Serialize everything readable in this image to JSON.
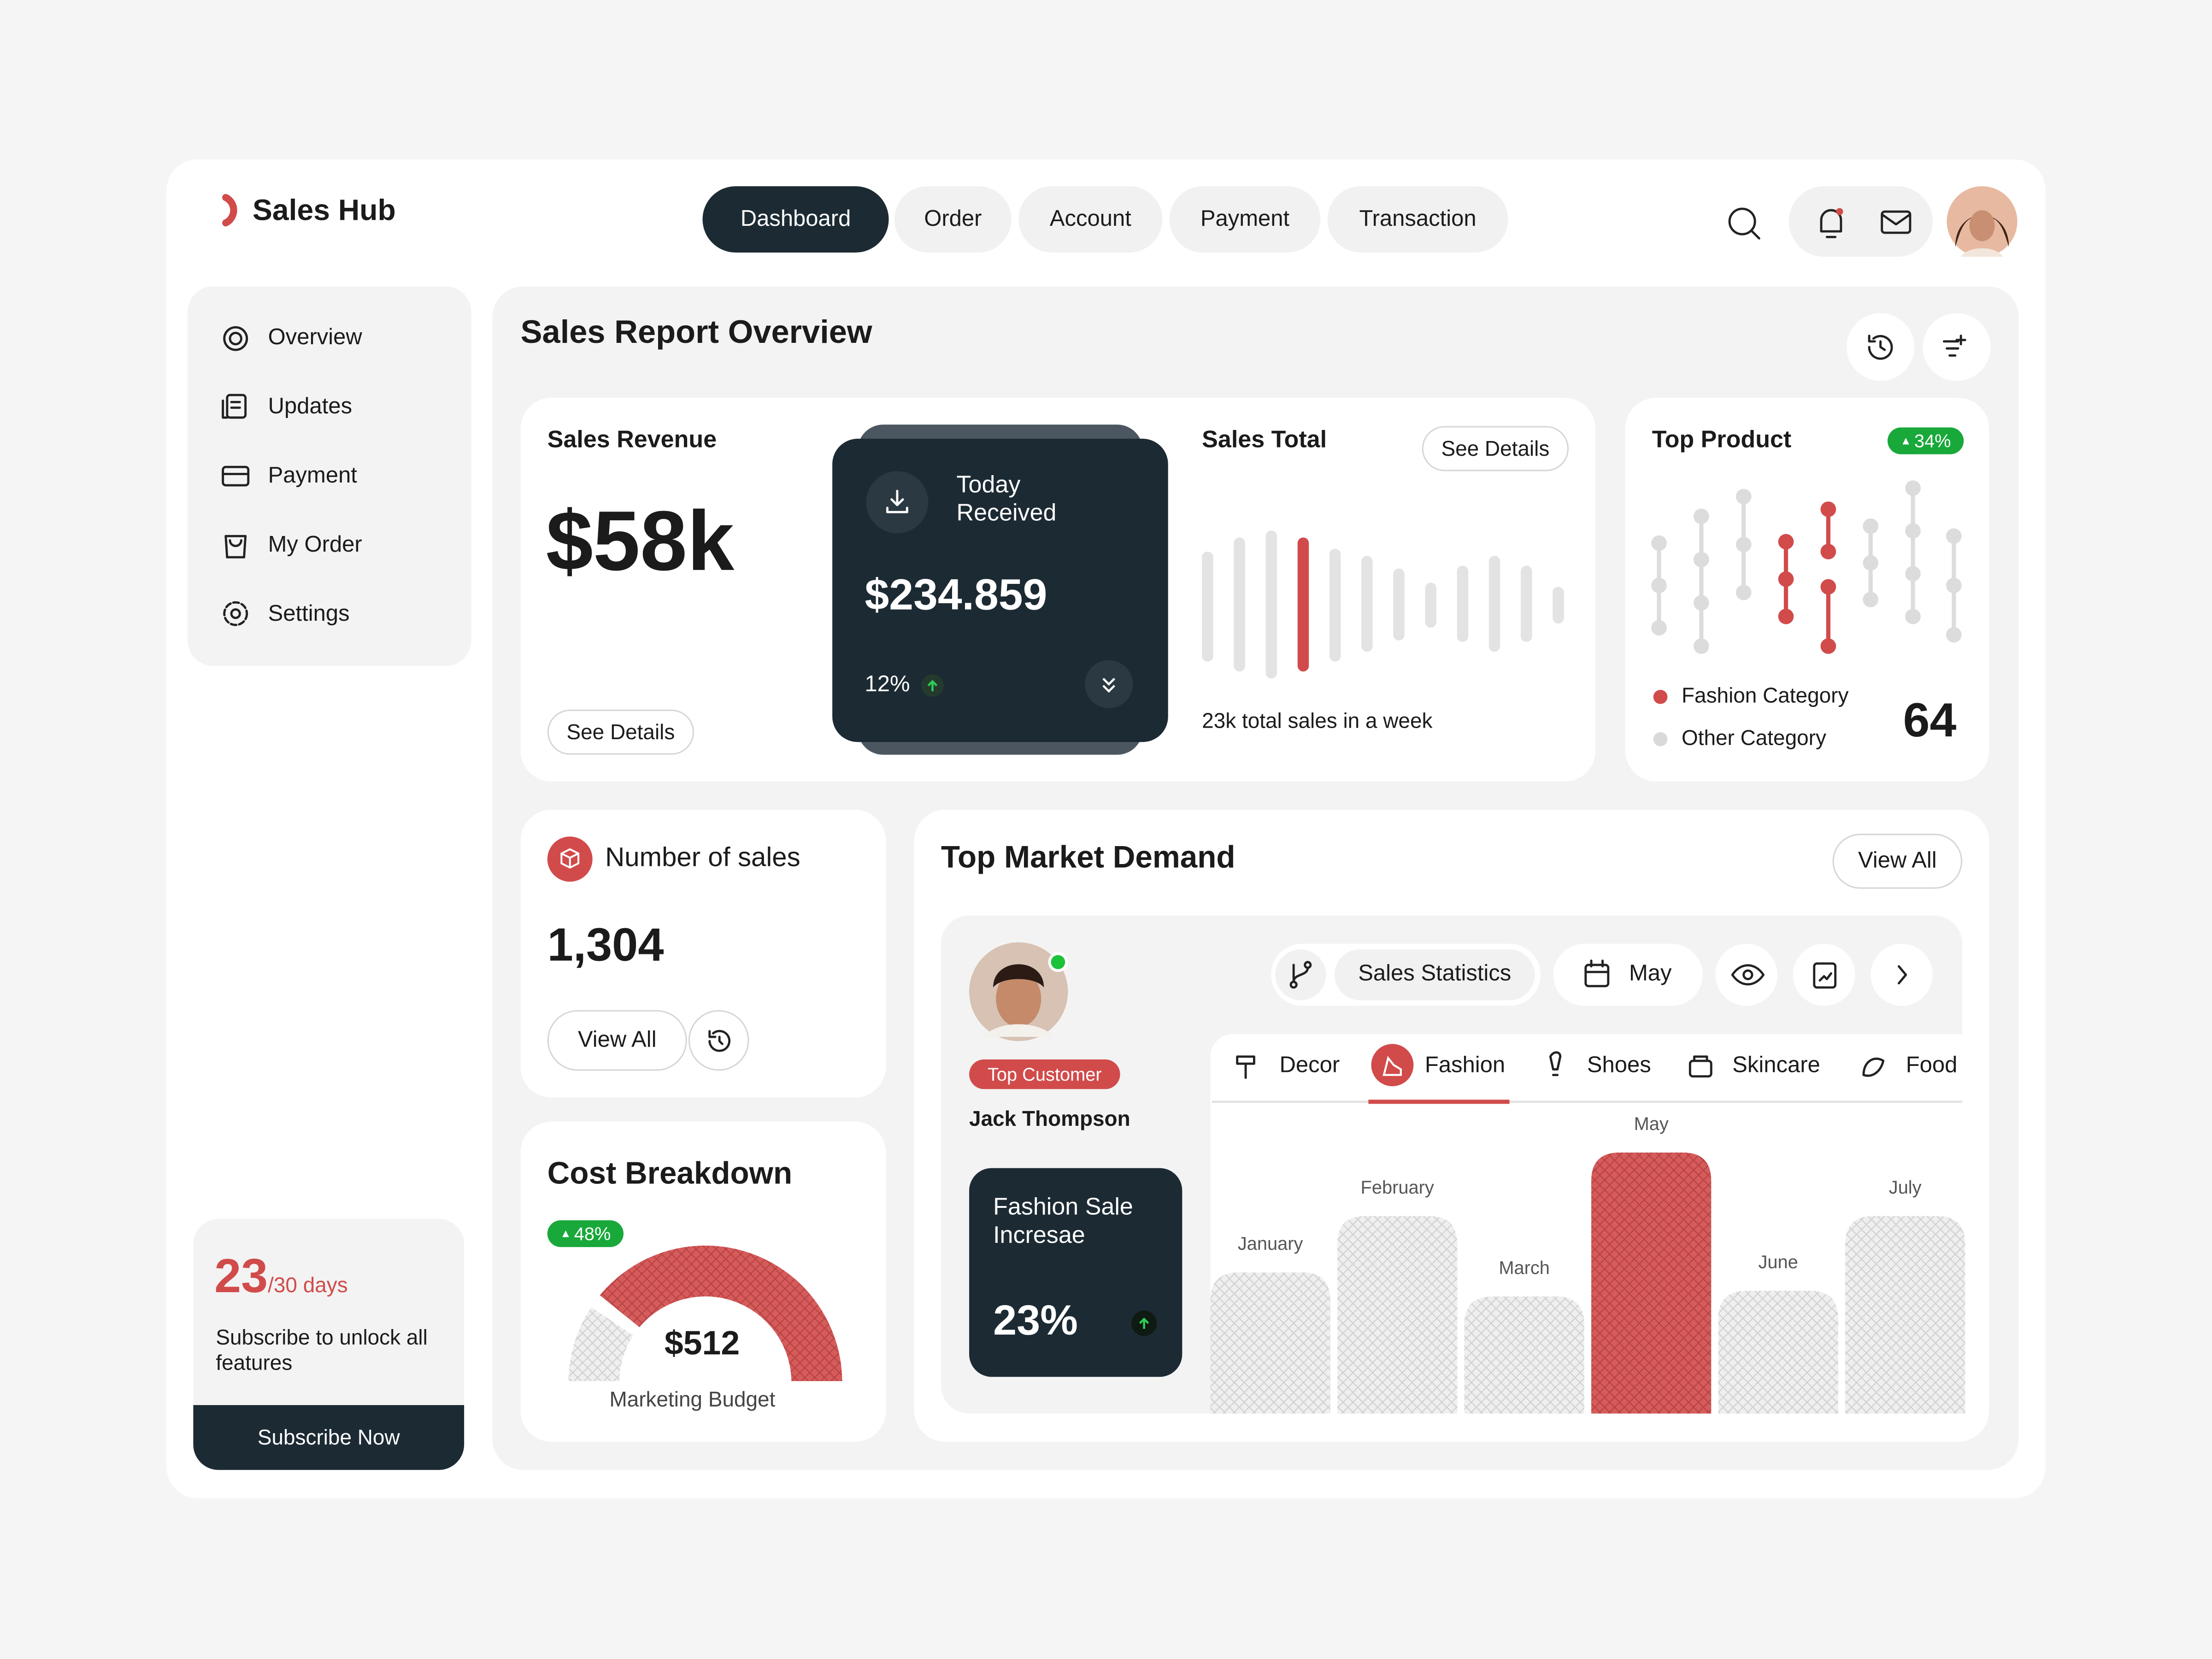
{
  "header": {
    "brand": "Sales Hub",
    "nav": [
      "Dashboard",
      "Order",
      "Account",
      "Payment",
      "Transaction"
    ]
  },
  "sidebar": {
    "menu": [
      "Overview",
      "Updates",
      "Payment",
      "My Order",
      "Settings"
    ],
    "subscription": {
      "used": "23",
      "total": "/30 days",
      "message": "Subscribe to unlock all features",
      "button": "Subscribe Now"
    }
  },
  "overview": {
    "title": "Sales Report Overview",
    "sales_revenue": {
      "title": "Sales Revenue",
      "amount": "$58k",
      "button": "See Details"
    },
    "today_received": {
      "title": "Today Received",
      "amount": "$234.859",
      "change": "12%"
    },
    "sales_total": {
      "title": "Sales Total",
      "button": "See Details",
      "caption": "23k total sales in a week"
    },
    "top_product": {
      "title": "Top Product",
      "badge": "34%",
      "legend": [
        "Fashion Category",
        "Other Category"
      ],
      "count": "64"
    },
    "number_of_sales": {
      "title": "Number of sales",
      "value": "1,304",
      "button": "View All"
    },
    "cost_breakdown": {
      "title": "Cost Breakdown",
      "badge": "48%",
      "amount": "$512",
      "label": "Marketing Budget"
    },
    "market_demand": {
      "title": "Top Market Demand",
      "button": "View All",
      "customer": {
        "badge": "Top Customer",
        "name": "Jack Thompson"
      },
      "promo": {
        "title": "Fashion Sale Incresae",
        "value": "23%"
      },
      "toolbar": {
        "statistics": "Sales Statistics",
        "month": "May"
      },
      "tabs": [
        "Decor",
        "Fashion",
        "Shoes",
        "Skincare",
        "Food"
      ],
      "chart": {
        "categories": [
          "January",
          "February",
          "March",
          "May",
          "June",
          "July"
        ],
        "values": [
          100,
          140,
          83,
          185,
          87,
          140
        ],
        "highlight": "May"
      }
    }
  }
}
